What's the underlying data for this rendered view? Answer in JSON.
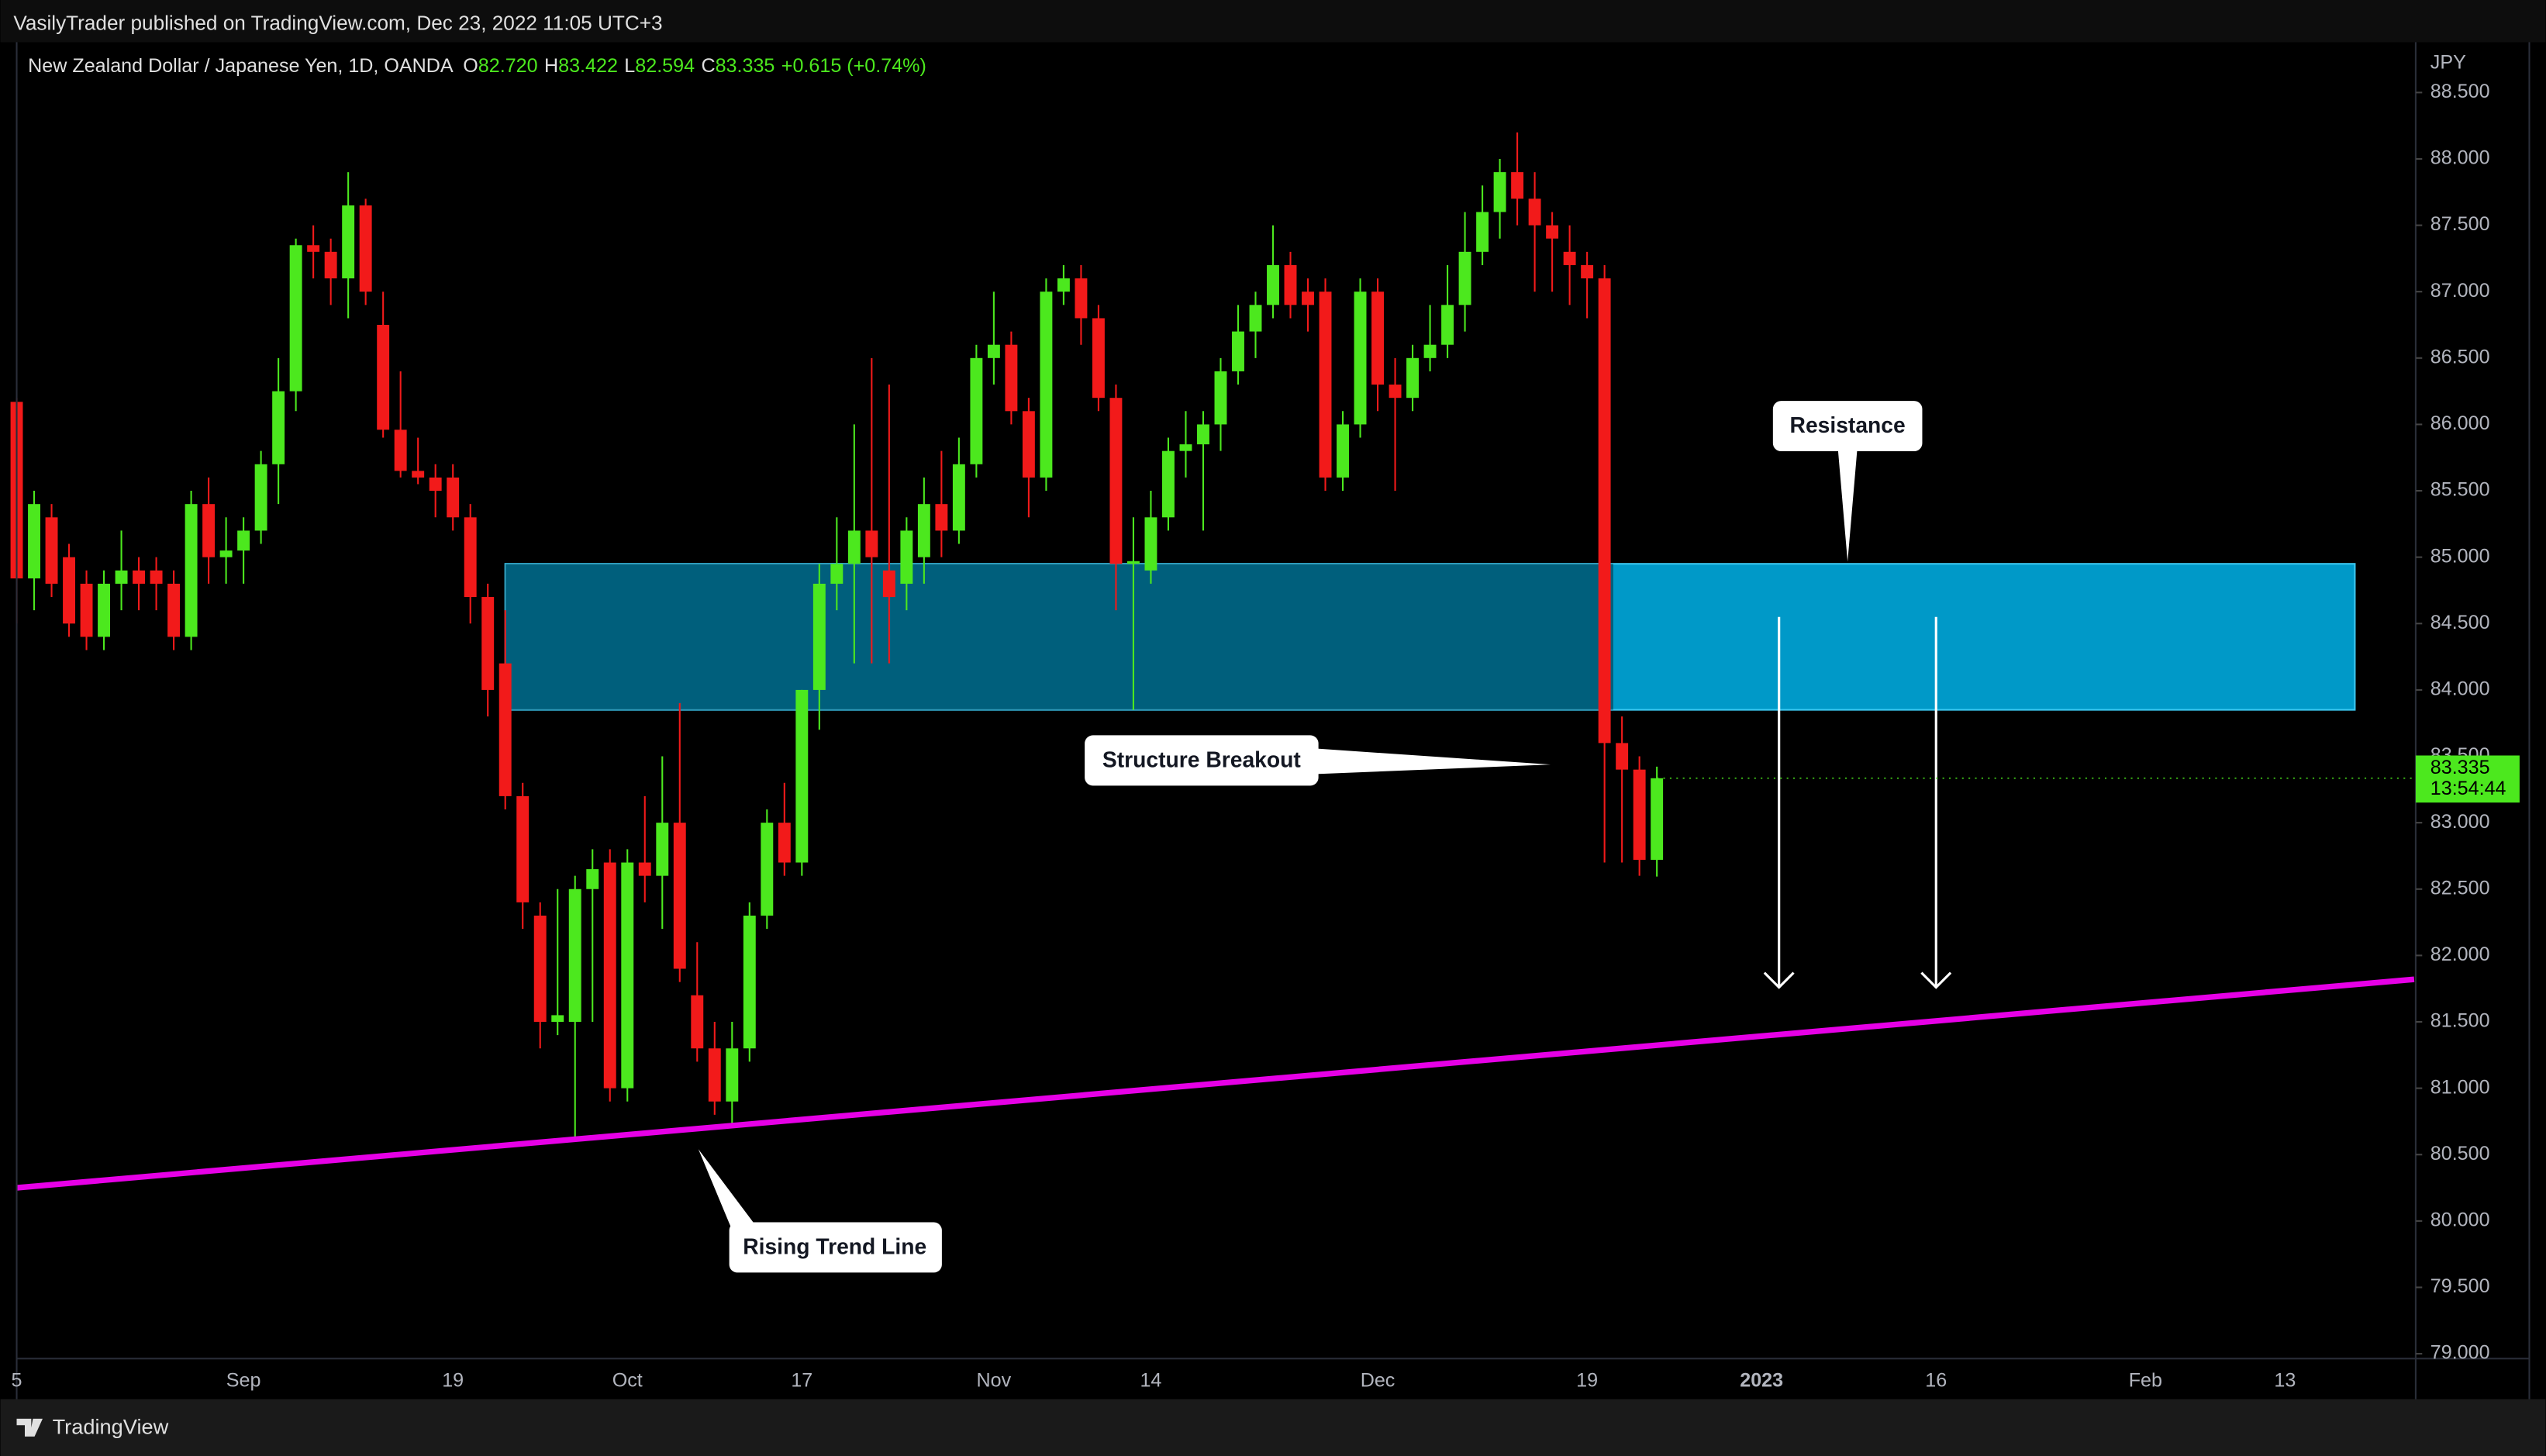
{
  "header": {
    "published": "VasilyTrader published on TradingView.com, Dec 23, 2022 11:05 UTC+3"
  },
  "footer": {
    "brand": "TradingView"
  },
  "chart_data": {
    "type": "candlestick",
    "symbol": "New Zealand Dollar / Japanese Yen, 1D, OANDA",
    "ohlc_legend": [
      {
        "key": "O",
        "value": 82.72,
        "label": "82.720"
      },
      {
        "key": "H",
        "value": 83.422,
        "label": "83.422"
      },
      {
        "key": "L",
        "value": 82.594,
        "label": "82.594"
      },
      {
        "key": "C",
        "value": 83.335,
        "label": "83.335"
      }
    ],
    "change": "+0.615 (+0.74%)",
    "currency": "JPY",
    "last_price": {
      "value": 83.335,
      "label": "83.335"
    },
    "countdown": "13:54:44",
    "up_color": "#4ce81e",
    "down_color": "#f21a1a",
    "ohlc": [
      [
        86.17,
        86.2,
        84.5,
        84.84
      ],
      [
        84.84,
        85.5,
        84.6,
        85.4
      ],
      [
        85.3,
        85.4,
        84.7,
        84.8
      ],
      [
        85.0,
        85.1,
        84.4,
        84.5
      ],
      [
        84.8,
        84.9,
        84.3,
        84.4
      ],
      [
        84.4,
        84.9,
        84.3,
        84.8
      ],
      [
        84.8,
        85.2,
        84.6,
        84.9
      ],
      [
        84.9,
        85.0,
        84.6,
        84.8
      ],
      [
        84.9,
        85.0,
        84.6,
        84.8
      ],
      [
        84.8,
        84.9,
        84.3,
        84.4
      ],
      [
        84.4,
        85.5,
        84.3,
        85.4
      ],
      [
        85.4,
        85.6,
        84.8,
        85.0
      ],
      [
        85.0,
        85.3,
        84.8,
        85.05
      ],
      [
        85.05,
        85.3,
        84.8,
        85.2
      ],
      [
        85.2,
        85.8,
        85.1,
        85.7
      ],
      [
        85.7,
        86.5,
        85.4,
        86.25
      ],
      [
        86.25,
        87.4,
        86.1,
        87.35
      ],
      [
        87.35,
        87.5,
        87.1,
        87.3
      ],
      [
        87.3,
        87.4,
        86.9,
        87.1
      ],
      [
        87.1,
        87.9,
        86.8,
        87.65
      ],
      [
        87.65,
        87.7,
        86.9,
        87.0
      ],
      [
        86.75,
        87.0,
        85.9,
        85.96
      ],
      [
        85.96,
        86.4,
        85.6,
        85.65
      ],
      [
        85.65,
        85.9,
        85.55,
        85.6
      ],
      [
        85.6,
        85.7,
        85.3,
        85.5
      ],
      [
        85.6,
        85.7,
        85.2,
        85.3
      ],
      [
        85.3,
        85.4,
        84.5,
        84.7
      ],
      [
        84.7,
        84.8,
        83.8,
        84.0
      ],
      [
        84.2,
        84.6,
        83.1,
        83.2
      ],
      [
        83.2,
        83.3,
        82.2,
        82.4
      ],
      [
        82.3,
        82.4,
        81.3,
        81.5
      ],
      [
        81.5,
        82.5,
        81.4,
        81.55
      ],
      [
        81.5,
        82.6,
        80.6,
        82.5
      ],
      [
        82.5,
        82.8,
        81.5,
        82.65
      ],
      [
        82.7,
        82.8,
        80.9,
        81.0
      ],
      [
        81.0,
        82.8,
        80.9,
        82.7
      ],
      [
        82.7,
        83.2,
        82.4,
        82.6
      ],
      [
        82.6,
        83.5,
        82.2,
        83.0
      ],
      [
        83.0,
        83.9,
        81.8,
        81.9
      ],
      [
        81.7,
        82.1,
        81.2,
        81.3
      ],
      [
        81.3,
        81.5,
        80.8,
        80.9
      ],
      [
        80.9,
        81.5,
        80.7,
        81.3
      ],
      [
        81.3,
        82.4,
        81.2,
        82.3
      ],
      [
        82.3,
        83.1,
        82.2,
        83.0
      ],
      [
        83.0,
        83.3,
        82.6,
        82.7
      ],
      [
        82.7,
        84.0,
        82.6,
        84.0
      ],
      [
        84.0,
        84.95,
        83.7,
        84.8
      ],
      [
        84.8,
        85.3,
        84.6,
        84.95
      ],
      [
        84.95,
        86.0,
        84.2,
        85.2
      ],
      [
        85.2,
        86.5,
        84.2,
        85.0
      ],
      [
        84.9,
        86.3,
        84.2,
        84.7
      ],
      [
        84.8,
        85.3,
        84.6,
        85.2
      ],
      [
        85.0,
        85.6,
        84.8,
        85.4
      ],
      [
        85.4,
        85.8,
        85.0,
        85.2
      ],
      [
        85.2,
        85.9,
        85.1,
        85.7
      ],
      [
        85.7,
        86.6,
        85.6,
        86.5
      ],
      [
        86.5,
        87.0,
        86.3,
        86.6
      ],
      [
        86.6,
        86.7,
        86.0,
        86.1
      ],
      [
        86.1,
        86.2,
        85.3,
        85.6
      ],
      [
        85.6,
        87.1,
        85.5,
        87.0
      ],
      [
        87.0,
        87.2,
        86.9,
        87.1
      ],
      [
        87.1,
        87.2,
        86.6,
        86.8
      ],
      [
        86.8,
        86.9,
        86.1,
        86.2
      ],
      [
        86.2,
        86.3,
        84.6,
        84.95
      ],
      [
        84.95,
        85.3,
        83.85,
        84.97
      ],
      [
        84.9,
        85.5,
        84.8,
        85.3
      ],
      [
        85.3,
        85.9,
        85.2,
        85.8
      ],
      [
        85.8,
        86.1,
        85.6,
        85.85
      ],
      [
        85.85,
        86.1,
        85.2,
        86.0
      ],
      [
        86.0,
        86.5,
        85.8,
        86.4
      ],
      [
        86.4,
        86.9,
        86.3,
        86.7
      ],
      [
        86.7,
        87.0,
        86.5,
        86.9
      ],
      [
        86.9,
        87.5,
        86.8,
        87.2
      ],
      [
        87.2,
        87.3,
        86.8,
        86.9
      ],
      [
        87.0,
        87.1,
        86.7,
        86.9
      ],
      [
        87.0,
        87.1,
        85.5,
        85.6
      ],
      [
        85.6,
        86.1,
        85.5,
        86.0
      ],
      [
        86.0,
        87.1,
        85.9,
        87.0
      ],
      [
        87.0,
        87.1,
        86.1,
        86.3
      ],
      [
        86.3,
        86.5,
        85.5,
        86.2
      ],
      [
        86.2,
        86.6,
        86.1,
        86.5
      ],
      [
        86.5,
        86.9,
        86.4,
        86.6
      ],
      [
        86.6,
        87.2,
        86.5,
        86.9
      ],
      [
        86.9,
        87.6,
        86.7,
        87.3
      ],
      [
        87.3,
        87.8,
        87.2,
        87.6
      ],
      [
        87.6,
        88.0,
        87.4,
        87.9
      ],
      [
        87.9,
        88.2,
        87.5,
        87.7
      ],
      [
        87.7,
        87.9,
        87.0,
        87.5
      ],
      [
        87.5,
        87.6,
        87.0,
        87.4
      ],
      [
        87.3,
        87.5,
        86.9,
        87.2
      ],
      [
        87.2,
        87.3,
        86.8,
        87.1
      ],
      [
        87.1,
        87.2,
        82.7,
        83.6
      ],
      [
        83.6,
        83.8,
        82.7,
        83.4
      ],
      [
        83.4,
        83.5,
        82.6,
        82.72
      ],
      [
        82.72,
        83.422,
        82.594,
        83.335
      ]
    ],
    "xticks": [
      {
        "value": 0,
        "label": "5"
      },
      {
        "value": 13,
        "label": "Sep"
      },
      {
        "value": 25,
        "label": "19"
      },
      {
        "value": 35,
        "label": "Oct"
      },
      {
        "value": 45,
        "label": "17"
      },
      {
        "value": 56,
        "label": "Nov"
      },
      {
        "value": 65,
        "label": "14"
      },
      {
        "value": 78,
        "label": "Dec"
      },
      {
        "value": 90,
        "label": "19"
      },
      {
        "value": 100,
        "label": "2023"
      },
      {
        "value": 110,
        "label": "16"
      },
      {
        "value": 122,
        "label": "Feb"
      },
      {
        "value": 130,
        "label": "13"
      }
    ],
    "ylim": [
      79.0,
      88.5
    ],
    "yticks": [
      {
        "value": 79,
        "label": "79.000"
      },
      {
        "value": 79.5,
        "label": "79.500"
      },
      {
        "value": 80,
        "label": "80.000"
      },
      {
        "value": 80.5,
        "label": "80.500"
      },
      {
        "value": 81,
        "label": "81.000"
      },
      {
        "value": 81.5,
        "label": "81.500"
      },
      {
        "value": 82,
        "label": "82.000"
      },
      {
        "value": 82.5,
        "label": "82.500"
      },
      {
        "value": 83,
        "label": "83.000"
      },
      {
        "value": 83.5,
        "label": "83.500"
      },
      {
        "value": 84,
        "label": "84.000"
      },
      {
        "value": 84.5,
        "label": "84.500"
      },
      {
        "value": 85,
        "label": "85.000"
      },
      {
        "value": 85.5,
        "label": "85.500"
      },
      {
        "value": 86,
        "label": "86.000"
      },
      {
        "value": 86.5,
        "label": "86.500"
      },
      {
        "value": 87,
        "label": "87.000"
      },
      {
        "value": 87.5,
        "label": "87.500"
      },
      {
        "value": 88,
        "label": "88.000"
      },
      {
        "value": 88.5,
        "label": "88.500"
      }
    ],
    "zone": {
      "start": 28,
      "end": 134,
      "top": 84.95,
      "bottom": 83.85,
      "color": "#0099c8"
    },
    "trend_line": {
      "points": [
        [
          0,
          80.25
        ],
        [
          137.4,
          81.82
        ]
      ],
      "color": "#e600e6"
    },
    "arrows": [
      {
        "x": 101,
        "from": 84.55,
        "to": 81.76
      },
      {
        "x": 110,
        "from": 84.55,
        "to": 81.76
      }
    ],
    "annotations": [
      "Resistance",
      "Structure Breakout",
      "Rising Trend Line"
    ]
  }
}
